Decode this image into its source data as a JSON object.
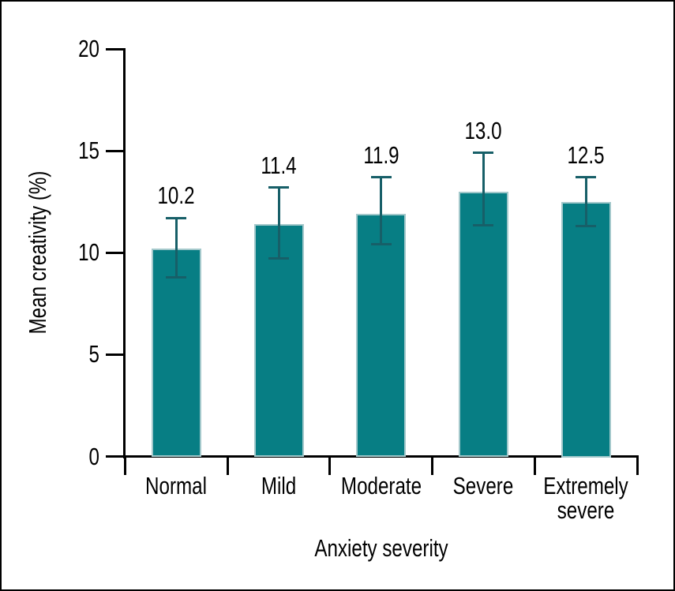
{
  "window": {
    "background": "#ffffff",
    "frame_color": "#000000"
  },
  "colors": {
    "bar_fill": "#077e84",
    "bar_border": "#a3c8cb",
    "error_bar": "#175f68",
    "axis": "#000000",
    "text": "#000000"
  },
  "chart_data": {
    "type": "bar",
    "title": "",
    "xlabel": "Anxiety severity",
    "ylabel": "Mean creativity (%)",
    "categories": [
      "Normal",
      "Mild",
      "Moderate",
      "Severe",
      "Extremely severe"
    ],
    "values": [
      10.2,
      11.4,
      11.9,
      13.0,
      12.5
    ],
    "value_labels": [
      "10.2",
      "11.4",
      "11.9",
      "13.0",
      "12.5"
    ],
    "error_upper": [
      11.7,
      13.2,
      13.7,
      14.9,
      13.7
    ],
    "error_lower": [
      8.8,
      9.7,
      10.4,
      11.35,
      11.3
    ],
    "ylim": [
      0,
      20
    ],
    "yticks": [
      0,
      5,
      10,
      15,
      20
    ],
    "ytick_labels": [
      "0",
      "5",
      "10",
      "15",
      "20"
    ],
    "grid": false,
    "legend": null
  }
}
